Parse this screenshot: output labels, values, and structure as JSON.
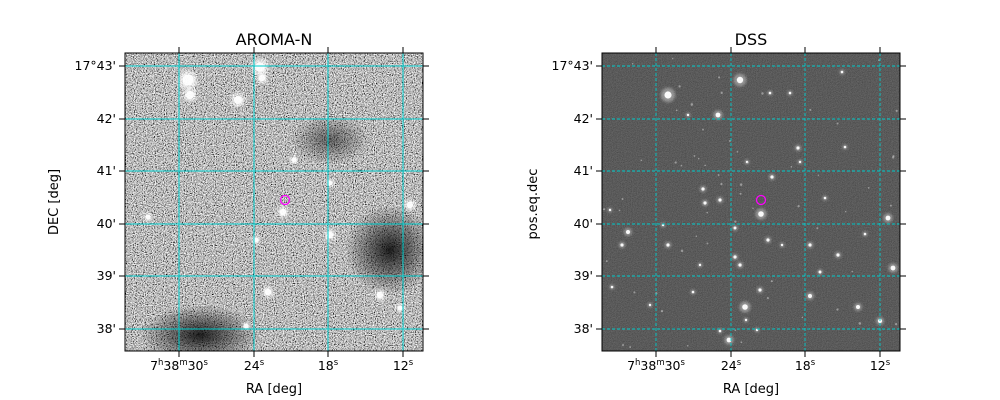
{
  "colors": {
    "grid": "#00cccc",
    "marker": "#ff00ff",
    "frame": "#000000",
    "background": "#ffffff"
  },
  "ticks": {
    "dec_deg_prefix": "17°43'",
    "dec_labels": [
      "17°43'",
      "42'",
      "41'",
      "40'",
      "39'",
      "38'"
    ],
    "ra_labels": [
      {
        "base": "7",
        "h": "h",
        "m": "38",
        "mm": "m",
        "s": "30",
        "ss": "s"
      },
      {
        "base": "24",
        "ss": "s"
      },
      {
        "base": "18",
        "ss": "s"
      },
      {
        "base": "12",
        "ss": "s"
      }
    ]
  },
  "panels": [
    {
      "id": "aroma",
      "title": "AROMA-N",
      "xlabel": "RA [deg]",
      "ylabel": "DEC [deg]",
      "image": "noisy-grayscale-sky",
      "marker": "circle",
      "grid": true
    },
    {
      "id": "dss",
      "title": "DSS",
      "xlabel": "RA [deg]",
      "ylabel": "pos.eq.dec",
      "image": "dark-starfield",
      "marker": "circle",
      "grid": true
    }
  ]
}
